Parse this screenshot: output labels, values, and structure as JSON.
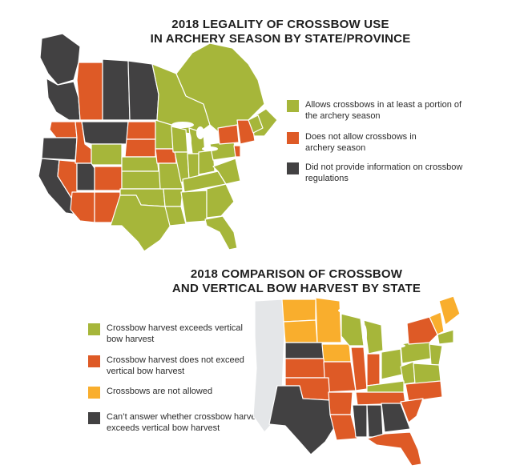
{
  "colors": {
    "green": "#a6b63a",
    "orange": "#de5a26",
    "gray": "#424142",
    "yellow": "#f9ae2d",
    "light": "#e4e6e8"
  },
  "map1": {
    "title_line1": "2018 LEGALITY OF CROSSBOW USE",
    "title_line2": "IN ARCHERY SEASON BY STATE/PROVINCE",
    "legend": [
      {
        "color_key": "green",
        "text_line1": "Allows crossbows in at least a portion of",
        "text_line2": "the archery season"
      },
      {
        "color_key": "orange",
        "text_line1": "Does not allow crossbows in",
        "text_line2": "archery season"
      },
      {
        "color_key": "gray",
        "text_line1": "Did not provide information on crossbow",
        "text_line2": "regulations"
      }
    ]
  },
  "map2": {
    "title_line1": "2018 COMPARISON OF CROSSBOW",
    "title_line2": "AND VERTICAL BOW HARVEST BY STATE",
    "legend": [
      {
        "color_key": "green",
        "text_line1": "Crossbow harvest exceeds vertical",
        "text_line2": "bow harvest"
      },
      {
        "color_key": "orange",
        "text_line1": "Crossbow harvest does not exceed",
        "text_line2": "vertical bow harvest"
      },
      {
        "color_key": "yellow",
        "text_line1": "Crossbows are not allowed",
        "text_line2": ""
      },
      {
        "color_key": "gray",
        "text_line1": "Can’t answer whether crossbow harvest",
        "text_line2": "exceeds vertical bow harvest"
      }
    ]
  }
}
